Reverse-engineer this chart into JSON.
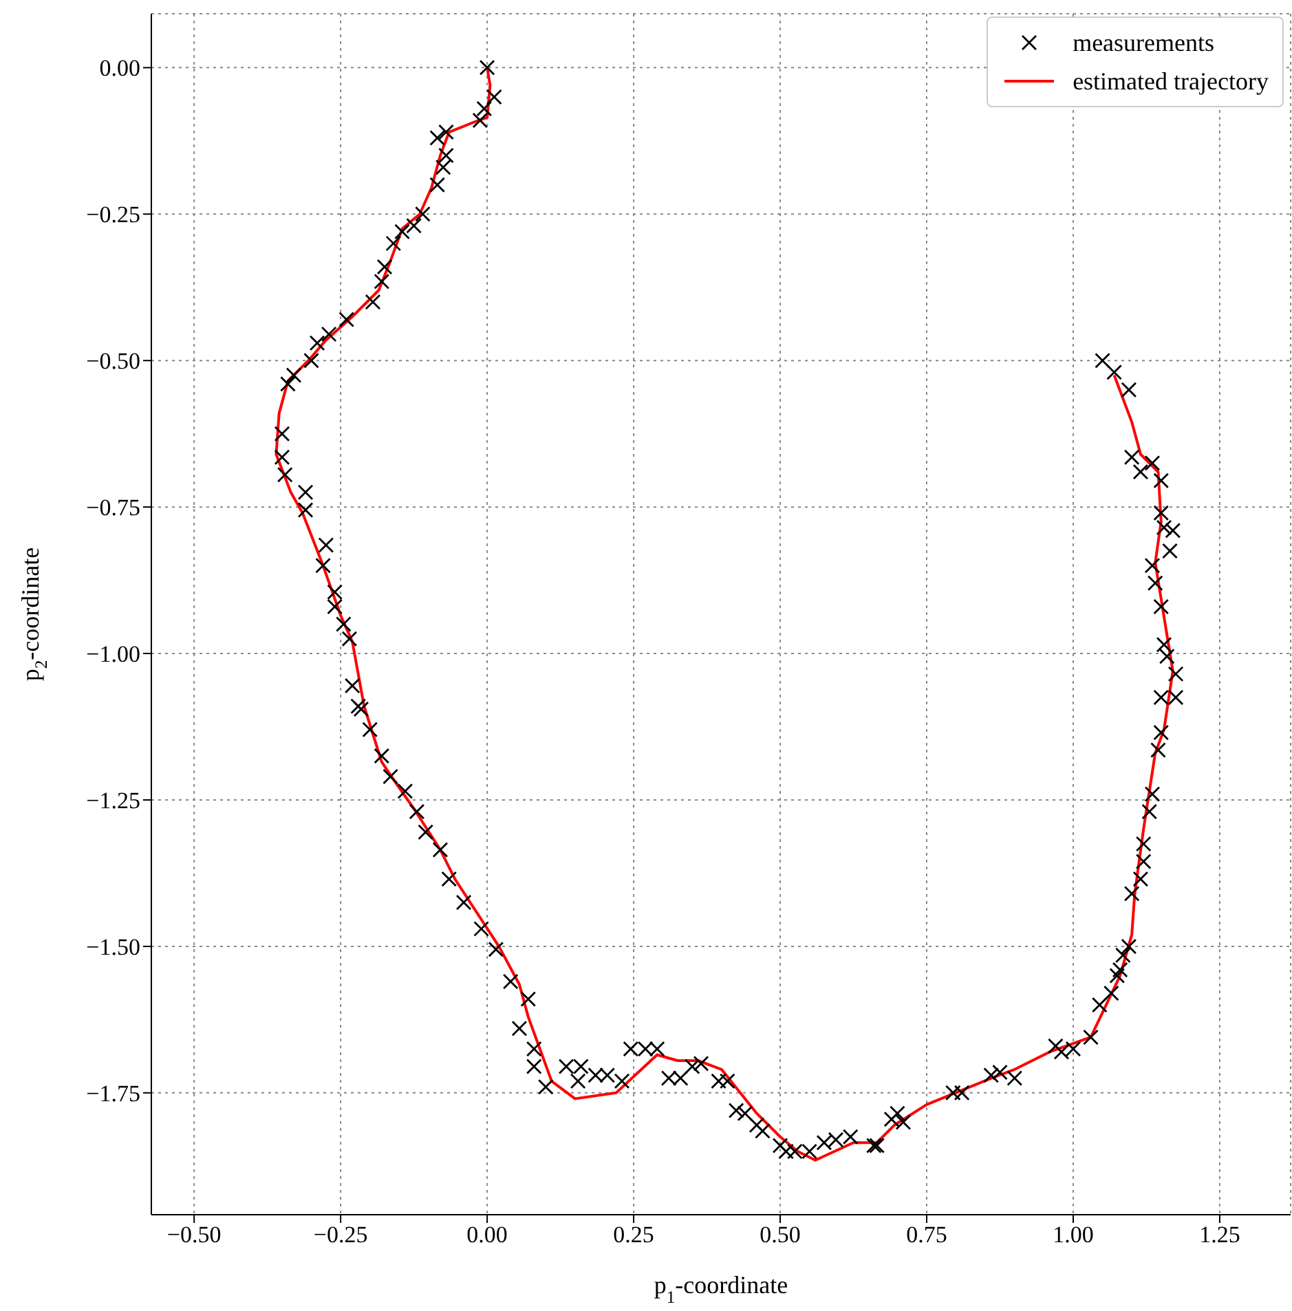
{
  "chart_data": {
    "type": "scatter",
    "xlabel": "p$_{1}$-coordinate",
    "ylabel": "p$_{2}$-coordinate",
    "xlim": [
      -0.573,
      1.371
    ],
    "ylim": [
      -1.958,
      0.092
    ],
    "xticks": [
      {
        "value": -0.5,
        "label": "−0.50"
      },
      {
        "value": -0.25,
        "label": "−0.25"
      },
      {
        "value": 0,
        "label": "0.00"
      },
      {
        "value": 0.25,
        "label": "0.25"
      },
      {
        "value": 0.5,
        "label": "0.50"
      },
      {
        "value": 0.75,
        "label": "0.75"
      },
      {
        "value": 1,
        "label": "1.00"
      },
      {
        "value": 1.25,
        "label": "1.25"
      }
    ],
    "yticks": [
      {
        "value": -1.75,
        "label": "−1.75"
      },
      {
        "value": -1.5,
        "label": "−1.50"
      },
      {
        "value": -1.25,
        "label": "−1.25"
      },
      {
        "value": -1,
        "label": "−1.00"
      },
      {
        "value": -0.75,
        "label": "−0.75"
      },
      {
        "value": -0.5,
        "label": "−0.50"
      },
      {
        "value": -0.25,
        "label": "−0.25"
      },
      {
        "value": 0,
        "label": "0.00"
      }
    ],
    "grid": true,
    "legend": "top right",
    "series": [
      {
        "name": "measurements",
        "color": "#000000",
        "marker": "cross",
        "x": [
          0,
          0.012,
          -0.005,
          -0.012,
          -0.07,
          -0.085,
          -0.07,
          -0.075,
          -0.085,
          -0.11,
          -0.125,
          -0.145,
          -0.16,
          -0.175,
          -0.18,
          -0.195,
          -0.24,
          -0.27,
          -0.29,
          -0.3,
          -0.33,
          -0.34,
          -0.35,
          -0.35,
          -0.345,
          -0.31,
          -0.31,
          -0.275,
          -0.28,
          -0.26,
          -0.26,
          -0.245,
          -0.235,
          -0.23,
          -0.22,
          -0.215,
          -0.2,
          -0.18,
          -0.165,
          -0.14,
          -0.12,
          -0.105,
          -0.08,
          -0.065,
          -0.04,
          -0.01,
          0.015,
          0.04,
          0.07,
          0.055,
          0.08,
          0.08,
          0.1,
          0.135,
          0.16,
          0.155,
          0.185,
          0.205,
          0.23,
          0.245,
          0.27,
          0.29,
          0.31,
          0.33,
          0.35,
          0.365,
          0.395,
          0.41,
          0.425,
          0.44,
          0.46,
          0.47,
          0.5,
          0.51,
          0.525,
          0.55,
          0.575,
          0.595,
          0.62,
          0.66,
          0.665,
          0.69,
          0.7,
          0.71,
          0.795,
          0.81,
          0.86,
          0.875,
          0.9,
          0.97,
          0.98,
          1,
          1.03,
          1.045,
          1.065,
          1.075,
          1.08,
          1.095,
          1.085,
          1.1,
          1.115,
          1.12,
          1.12,
          1.13,
          1.135,
          1.145,
          1.15,
          1.15,
          1.175,
          1.175,
          1.16,
          1.155,
          1.15,
          1.14,
          1.135,
          1.165,
          1.17,
          1.155,
          1.15,
          1.15,
          1.135,
          1.115,
          1.1,
          1.095,
          1.07,
          1.05
        ],
        "values": [
          0,
          -0.05,
          -0.07,
          -0.09,
          -0.11,
          -0.12,
          -0.15,
          -0.17,
          -0.2,
          -0.25,
          -0.27,
          -0.28,
          -0.3,
          -0.34,
          -0.365,
          -0.4,
          -0.43,
          -0.455,
          -0.47,
          -0.5,
          -0.525,
          -0.54,
          -0.625,
          -0.665,
          -0.695,
          -0.725,
          -0.755,
          -0.815,
          -0.85,
          -0.895,
          -0.92,
          -0.95,
          -0.975,
          -1.055,
          -1.09,
          -1.095,
          -1.13,
          -1.175,
          -1.21,
          -1.235,
          -1.27,
          -1.305,
          -1.335,
          -1.385,
          -1.425,
          -1.47,
          -1.505,
          -1.56,
          -1.59,
          -1.64,
          -1.675,
          -1.705,
          -1.74,
          -1.705,
          -1.705,
          -1.73,
          -1.72,
          -1.72,
          -1.73,
          -1.675,
          -1.675,
          -1.675,
          -1.725,
          -1.725,
          -1.705,
          -1.7,
          -1.73,
          -1.73,
          -1.78,
          -1.785,
          -1.805,
          -1.815,
          -1.84,
          -1.85,
          -1.85,
          -1.85,
          -1.835,
          -1.83,
          -1.825,
          -1.84,
          -1.84,
          -1.795,
          -1.785,
          -1.8,
          -1.75,
          -1.75,
          -1.72,
          -1.715,
          -1.725,
          -1.67,
          -1.68,
          -1.675,
          -1.655,
          -1.6,
          -1.58,
          -1.55,
          -1.54,
          -1.5,
          -1.515,
          -1.41,
          -1.385,
          -1.355,
          -1.325,
          -1.27,
          -1.24,
          -1.165,
          -1.135,
          -1.075,
          -1.035,
          -1.075,
          -1.005,
          -0.985,
          -0.92,
          -0.88,
          -0.85,
          -0.825,
          -0.79,
          -0.785,
          -0.76,
          -0.705,
          -0.675,
          -0.69,
          -0.665,
          -0.55,
          -0.52,
          -0.5
        ]
      },
      {
        "name": "estimated trajectory",
        "type": "line",
        "color": "#ff0000",
        "line_style": "solid",
        "x": [
          0,
          0.005,
          0,
          -0.015,
          -0.065,
          -0.08,
          -0.095,
          -0.115,
          -0.145,
          -0.165,
          -0.185,
          -0.23,
          -0.275,
          -0.305,
          -0.34,
          -0.355,
          -0.36,
          -0.335,
          -0.315,
          -0.28,
          -0.25,
          -0.23,
          -0.21,
          -0.18,
          -0.16,
          -0.125,
          -0.08,
          -0.055,
          0.02,
          0.055,
          0.07,
          0.11,
          0.15,
          0.22,
          0.29,
          0.325,
          0.36,
          0.4,
          0.46,
          0.5,
          0.53,
          0.56,
          0.625,
          0.665,
          0.695,
          0.75,
          0.86,
          0.9,
          0.96,
          1.03,
          1.08,
          1.1,
          1.105,
          1.12,
          1.14,
          1.155,
          1.17,
          1.14,
          1.15,
          1.145,
          1.115,
          1.1,
          1.07
        ],
        "values": [
          0,
          -0.03,
          -0.085,
          -0.09,
          -0.11,
          -0.15,
          -0.205,
          -0.25,
          -0.275,
          -0.33,
          -0.38,
          -0.425,
          -0.465,
          -0.5,
          -0.535,
          -0.59,
          -0.66,
          -0.725,
          -0.76,
          -0.85,
          -0.935,
          -0.98,
          -1.09,
          -1.185,
          -1.215,
          -1.265,
          -1.335,
          -1.385,
          -1.5,
          -1.565,
          -1.62,
          -1.73,
          -1.76,
          -1.75,
          -1.685,
          -1.695,
          -1.695,
          -1.71,
          -1.785,
          -1.825,
          -1.85,
          -1.865,
          -1.835,
          -1.835,
          -1.805,
          -1.77,
          -1.725,
          -1.71,
          -1.68,
          -1.655,
          -1.55,
          -1.48,
          -1.41,
          -1.3,
          -1.17,
          -1.13,
          -1.03,
          -0.845,
          -0.775,
          -0.69,
          -0.66,
          -0.605,
          -0.525
        ]
      }
    ]
  }
}
